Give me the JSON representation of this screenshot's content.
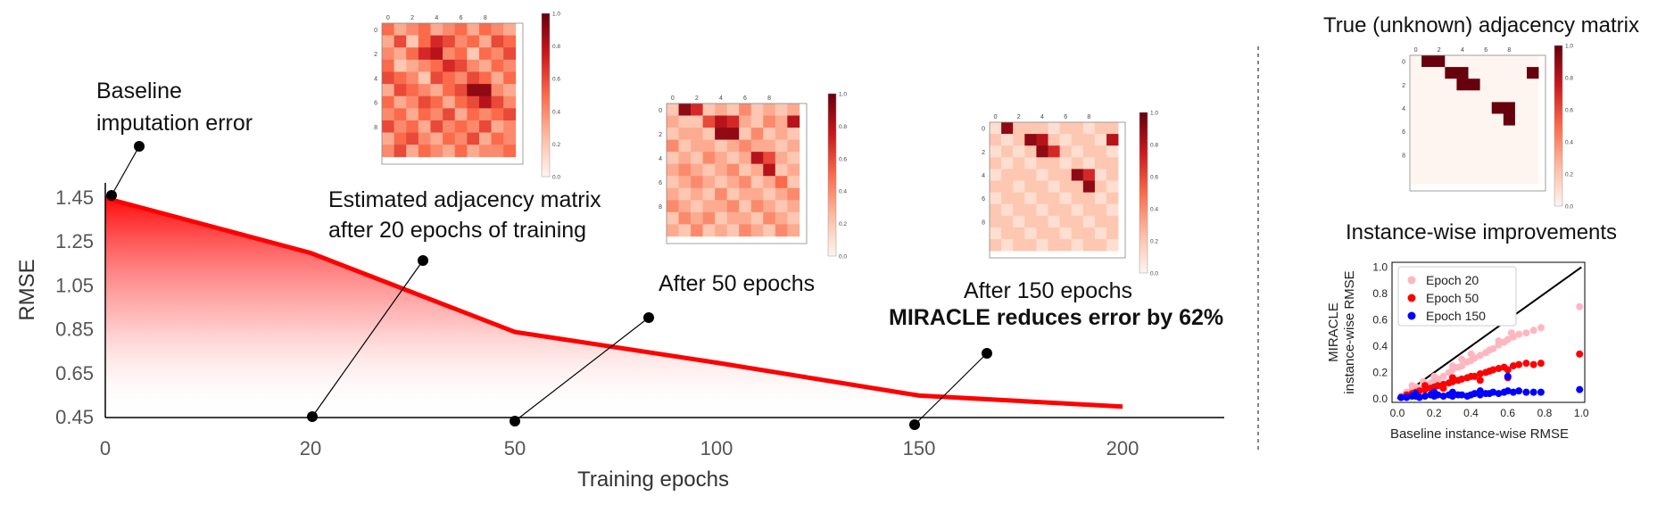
{
  "colors": {
    "accent_red": "#ff0000",
    "epoch20": "#ffb6c1",
    "epoch50": "#ff0000",
    "epoch150": "#0000ff",
    "line_black": "#000000",
    "heatmap_max": "#67000d",
    "heatmap_min": "#fff5f0"
  },
  "annotations": {
    "baseline": [
      "Baseline",
      "imputation error"
    ],
    "epoch20": [
      "Estimated adjacency matrix",
      "after 20 epochs of training"
    ],
    "epoch50": "After 50 epochs",
    "epoch150": "After 150 epochs",
    "reduction": "MIRACLE reduces error by 62%"
  },
  "heatmap_ticks": [
    "0",
    "2",
    "4",
    "6",
    "8"
  ],
  "colorbar_ticks": [
    "0.0",
    "0.2",
    "0.4",
    "0.6",
    "0.8",
    "1.0"
  ],
  "matrices": [
    {
      "id": "epoch20",
      "cells": [
        [
          0.5,
          0.3,
          0.4,
          0.5,
          0.3,
          0.4,
          0.5,
          0.3,
          0.5,
          0.4,
          0.3
        ],
        [
          0.3,
          0.6,
          0.2,
          0.5,
          0.7,
          0.6,
          0.4,
          0.5,
          0.3,
          0.6,
          0.5
        ],
        [
          0.4,
          0.3,
          0.5,
          0.7,
          0.8,
          0.4,
          0.5,
          0.2,
          0.5,
          0.4,
          0.6
        ],
        [
          0.5,
          0.2,
          0.3,
          0.4,
          0.5,
          0.7,
          0.6,
          0.4,
          0.3,
          0.5,
          0.4
        ],
        [
          0.6,
          0.5,
          0.4,
          0.2,
          0.6,
          0.5,
          0.4,
          0.6,
          0.5,
          0.3,
          0.5
        ],
        [
          0.3,
          0.6,
          0.5,
          0.4,
          0.3,
          0.5,
          0.6,
          0.9,
          0.9,
          0.4,
          0.3
        ],
        [
          0.5,
          0.3,
          0.4,
          0.6,
          0.5,
          0.3,
          0.5,
          0.6,
          0.8,
          0.6,
          0.4
        ],
        [
          0.4,
          0.5,
          0.3,
          0.5,
          0.4,
          0.6,
          0.3,
          0.5,
          0.4,
          0.5,
          0.6
        ],
        [
          0.6,
          0.4,
          0.5,
          0.3,
          0.6,
          0.4,
          0.5,
          0.4,
          0.6,
          0.3,
          0.4
        ],
        [
          0.3,
          0.5,
          0.6,
          0.4,
          0.3,
          0.5,
          0.4,
          0.6,
          0.3,
          0.5,
          0.4
        ],
        [
          0.4,
          0.6,
          0.3,
          0.5,
          0.4,
          0.3,
          0.5,
          0.3,
          0.4,
          0.4,
          0.5
        ]
      ]
    },
    {
      "id": "epoch50",
      "cells": [
        [
          0.2,
          0.9,
          0.7,
          0.2,
          0.3,
          0.2,
          0.4,
          0.2,
          0.3,
          0.2,
          0.3
        ],
        [
          0.3,
          0.2,
          0.2,
          0.6,
          0.8,
          0.7,
          0.3,
          0.2,
          0.4,
          0.3,
          0.8
        ],
        [
          0.2,
          0.3,
          0.3,
          0.2,
          0.9,
          0.9,
          0.2,
          0.4,
          0.2,
          0.3,
          0.2
        ],
        [
          0.4,
          0.2,
          0.3,
          0.3,
          0.2,
          0.3,
          0.4,
          0.3,
          0.3,
          0.2,
          0.3
        ],
        [
          0.2,
          0.3,
          0.2,
          0.4,
          0.3,
          0.2,
          0.3,
          0.8,
          0.6,
          0.3,
          0.2
        ],
        [
          0.3,
          0.4,
          0.3,
          0.2,
          0.3,
          0.4,
          0.2,
          0.3,
          0.8,
          0.2,
          0.3
        ],
        [
          0.2,
          0.3,
          0.4,
          0.3,
          0.2,
          0.3,
          0.4,
          0.2,
          0.3,
          0.5,
          0.2
        ],
        [
          0.3,
          0.2,
          0.3,
          0.2,
          0.4,
          0.2,
          0.3,
          0.3,
          0.2,
          0.3,
          0.4
        ],
        [
          0.4,
          0.3,
          0.2,
          0.3,
          0.3,
          0.4,
          0.2,
          0.4,
          0.3,
          0.2,
          0.3
        ],
        [
          0.2,
          0.4,
          0.3,
          0.4,
          0.2,
          0.3,
          0.3,
          0.2,
          0.4,
          0.3,
          0.2
        ],
        [
          0.3,
          0.2,
          0.4,
          0.2,
          0.3,
          0.2,
          0.4,
          0.3,
          0.2,
          0.4,
          0.3
        ]
      ]
    },
    {
      "id": "epoch150",
      "cells": [
        [
          0.1,
          0.9,
          0.2,
          0.2,
          0.2,
          0.1,
          0.2,
          0.2,
          0.1,
          0.2,
          0.2
        ],
        [
          0.2,
          0.1,
          0.2,
          0.9,
          0.8,
          0.2,
          0.1,
          0.2,
          0.2,
          0.1,
          0.8
        ],
        [
          0.1,
          0.2,
          0.1,
          0.2,
          0.9,
          0.7,
          0.2,
          0.1,
          0.2,
          0.2,
          0.1
        ],
        [
          0.2,
          0.1,
          0.2,
          0.1,
          0.2,
          0.2,
          0.1,
          0.2,
          0.1,
          0.2,
          0.2
        ],
        [
          0.1,
          0.2,
          0.2,
          0.2,
          0.1,
          0.2,
          0.2,
          0.9,
          0.7,
          0.1,
          0.2
        ],
        [
          0.2,
          0.2,
          0.1,
          0.2,
          0.2,
          0.1,
          0.2,
          0.2,
          0.9,
          0.2,
          0.1
        ],
        [
          0.1,
          0.2,
          0.2,
          0.1,
          0.2,
          0.2,
          0.1,
          0.2,
          0.2,
          0.1,
          0.2
        ],
        [
          0.2,
          0.1,
          0.2,
          0.2,
          0.1,
          0.2,
          0.2,
          0.1,
          0.2,
          0.2,
          0.1
        ],
        [
          0.2,
          0.2,
          0.1,
          0.2,
          0.2,
          0.1,
          0.2,
          0.2,
          0.1,
          0.2,
          0.2
        ],
        [
          0.1,
          0.2,
          0.2,
          0.1,
          0.2,
          0.2,
          0.1,
          0.2,
          0.2,
          0.1,
          0.2
        ],
        [
          0.2,
          0.1,
          0.2,
          0.2,
          0.1,
          0.2,
          0.2,
          0.1,
          0.2,
          0.2,
          0.1
        ]
      ]
    },
    {
      "id": "true",
      "cells": [
        [
          0,
          1,
          1,
          0,
          0,
          0,
          0,
          0,
          0,
          0,
          0
        ],
        [
          0,
          0,
          0,
          1,
          1,
          0,
          0,
          0,
          0,
          0,
          1
        ],
        [
          0,
          0,
          0,
          0,
          1,
          1,
          0,
          0,
          0,
          0,
          0
        ],
        [
          0,
          0,
          0,
          0,
          0,
          0,
          0,
          0,
          0,
          0,
          0
        ],
        [
          0,
          0,
          0,
          0,
          0,
          0,
          0,
          1,
          1,
          0,
          0
        ],
        [
          0,
          0,
          0,
          0,
          0,
          0,
          0,
          0,
          1,
          0,
          0
        ],
        [
          0,
          0,
          0,
          0,
          0,
          0,
          0,
          0,
          0,
          0,
          0
        ],
        [
          0,
          0,
          0,
          0,
          0,
          0,
          0,
          0,
          0,
          0,
          0
        ],
        [
          0,
          0,
          0,
          0,
          0,
          0,
          0,
          0,
          0,
          0,
          0
        ],
        [
          0,
          0,
          0,
          0,
          0,
          0,
          0,
          0,
          0,
          0,
          0
        ],
        [
          0,
          0,
          0,
          0,
          0,
          0,
          0,
          0,
          0,
          0,
          0
        ]
      ]
    }
  ],
  "right_panel": {
    "true_title": "True (unknown) adjacency matrix",
    "scatter_title": "Instance-wise improvements"
  },
  "chart_data": [
    {
      "type": "area",
      "categories": [
        "0",
        "20",
        "50",
        "100",
        "150",
        "200"
      ],
      "values": [
        1.45,
        1.2,
        0.84,
        0.7,
        0.55,
        0.5
      ],
      "xlabel": "Training epochs",
      "ylabel": "RMSE",
      "yticks": [
        "1.45",
        "1.25",
        "1.05",
        "0.85",
        "0.65",
        "0.45"
      ],
      "ylim": [
        0.45,
        1.45
      ]
    },
    {
      "type": "scatter",
      "xlabel": "Baseline instance-wise RMSE",
      "ylabel": [
        "MIRACLE",
        "instance-wise RMSE"
      ],
      "xlim": [
        0,
        1.0
      ],
      "ylim": [
        0,
        1.0
      ],
      "ticks": [
        "0.0",
        "0.2",
        "0.4",
        "0.6",
        "0.8",
        "1.0"
      ],
      "legend_position": "top-left",
      "series": [
        {
          "name": "Epoch 20",
          "points": [
            [
              0.02,
              0.02
            ],
            [
              0.05,
              0.05
            ],
            [
              0.08,
              0.07
            ],
            [
              0.1,
              0.09
            ],
            [
              0.12,
              0.08
            ],
            [
              0.15,
              0.11
            ],
            [
              0.18,
              0.12
            ],
            [
              0.2,
              0.14
            ],
            [
              0.22,
              0.15
            ],
            [
              0.25,
              0.17
            ],
            [
              0.28,
              0.2
            ],
            [
              0.3,
              0.22
            ],
            [
              0.33,
              0.24
            ],
            [
              0.35,
              0.25
            ],
            [
              0.38,
              0.28
            ],
            [
              0.4,
              0.29
            ],
            [
              0.42,
              0.31
            ],
            [
              0.45,
              0.33
            ],
            [
              0.48,
              0.35
            ],
            [
              0.5,
              0.37
            ],
            [
              0.52,
              0.38
            ],
            [
              0.55,
              0.41
            ],
            [
              0.58,
              0.43
            ],
            [
              0.6,
              0.45
            ],
            [
              0.63,
              0.47
            ],
            [
              0.66,
              0.49
            ],
            [
              0.7,
              0.5
            ],
            [
              0.74,
              0.52
            ],
            [
              0.78,
              0.54
            ],
            [
              0.99,
              0.7
            ],
            [
              0.3,
              0.25
            ],
            [
              0.4,
              0.34
            ],
            [
              0.55,
              0.44
            ],
            [
              0.2,
              0.17
            ],
            [
              0.08,
              0.1
            ],
            [
              0.14,
              0.13
            ],
            [
              0.35,
              0.3
            ],
            [
              0.62,
              0.5
            ]
          ]
        },
        {
          "name": "Epoch 50",
          "points": [
            [
              0.02,
              0.01
            ],
            [
              0.05,
              0.03
            ],
            [
              0.08,
              0.04
            ],
            [
              0.1,
              0.05
            ],
            [
              0.12,
              0.06
            ],
            [
              0.15,
              0.07
            ],
            [
              0.18,
              0.08
            ],
            [
              0.2,
              0.09
            ],
            [
              0.22,
              0.1
            ],
            [
              0.25,
              0.11
            ],
            [
              0.28,
              0.12
            ],
            [
              0.3,
              0.13
            ],
            [
              0.33,
              0.14
            ],
            [
              0.35,
              0.15
            ],
            [
              0.38,
              0.16
            ],
            [
              0.4,
              0.17
            ],
            [
              0.42,
              0.17
            ],
            [
              0.45,
              0.19
            ],
            [
              0.48,
              0.2
            ],
            [
              0.5,
              0.21
            ],
            [
              0.52,
              0.22
            ],
            [
              0.55,
              0.23
            ],
            [
              0.58,
              0.24
            ],
            [
              0.6,
              0.22
            ],
            [
              0.63,
              0.25
            ],
            [
              0.66,
              0.26
            ],
            [
              0.7,
              0.27
            ],
            [
              0.74,
              0.26
            ],
            [
              0.78,
              0.27
            ],
            [
              0.99,
              0.34
            ],
            [
              0.6,
              0.16
            ],
            [
              0.3,
              0.16
            ],
            [
              0.45,
              0.14
            ],
            [
              0.15,
              0.1
            ],
            [
              0.25,
              0.08
            ]
          ]
        },
        {
          "name": "Epoch 150",
          "points": [
            [
              0.02,
              0.01
            ],
            [
              0.05,
              0.01
            ],
            [
              0.08,
              0.02
            ],
            [
              0.1,
              0.02
            ],
            [
              0.12,
              0.01
            ],
            [
              0.15,
              0.02
            ],
            [
              0.18,
              0.03
            ],
            [
              0.2,
              0.02
            ],
            [
              0.22,
              0.03
            ],
            [
              0.25,
              0.02
            ],
            [
              0.28,
              0.03
            ],
            [
              0.3,
              0.02
            ],
            [
              0.33,
              0.03
            ],
            [
              0.35,
              0.03
            ],
            [
              0.38,
              0.02
            ],
            [
              0.4,
              0.03
            ],
            [
              0.42,
              0.04
            ],
            [
              0.45,
              0.03
            ],
            [
              0.48,
              0.04
            ],
            [
              0.5,
              0.04
            ],
            [
              0.52,
              0.05
            ],
            [
              0.55,
              0.04
            ],
            [
              0.58,
              0.05
            ],
            [
              0.6,
              0.06
            ],
            [
              0.63,
              0.05
            ],
            [
              0.66,
              0.06
            ],
            [
              0.7,
              0.05
            ],
            [
              0.74,
              0.05
            ],
            [
              0.78,
              0.05
            ],
            [
              0.99,
              0.07
            ],
            [
              0.6,
              0.17
            ],
            [
              0.1,
              0.04
            ],
            [
              0.3,
              0.05
            ],
            [
              0.45,
              0.06
            ],
            [
              0.2,
              0.05
            ]
          ]
        }
      ]
    }
  ]
}
